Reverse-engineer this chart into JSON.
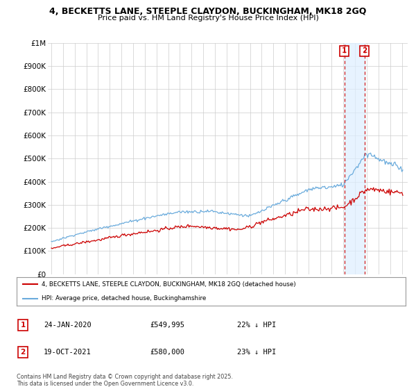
{
  "title_line1": "4, BECKETTS LANE, STEEPLE CLAYDON, BUCKINGHAM, MK18 2GQ",
  "title_line2": "Price paid vs. HM Land Registry's House Price Index (HPI)",
  "ylim": [
    0,
    1000000
  ],
  "yticks": [
    0,
    100000,
    200000,
    300000,
    400000,
    500000,
    600000,
    700000,
    800000,
    900000,
    1000000
  ],
  "ytick_labels": [
    "£0",
    "£100K",
    "£200K",
    "£300K",
    "£400K",
    "£500K",
    "£600K",
    "£700K",
    "£800K",
    "£900K",
    "£1M"
  ],
  "xlim_start": 1994.7,
  "xlim_end": 2025.5,
  "hpi_color": "#6aabdc",
  "price_color": "#cc0000",
  "transaction1_year": 2020.07,
  "transaction2_year": 2021.8,
  "shade_color": "#ddeeff",
  "legend_property": "4, BECKETTS LANE, STEEPLE CLAYDON, BUCKINGHAM, MK18 2GQ (detached house)",
  "legend_hpi": "HPI: Average price, detached house, Buckinghamshire",
  "table_row1": [
    "1",
    "24-JAN-2020",
    "£549,995",
    "22% ↓ HPI"
  ],
  "table_row2": [
    "2",
    "19-OCT-2021",
    "£580,000",
    "23% ↓ HPI"
  ],
  "footer": "Contains HM Land Registry data © Crown copyright and database right 2025.\nThis data is licensed under the Open Government Licence v3.0.",
  "background_color": "#ffffff",
  "grid_color": "#cccccc"
}
